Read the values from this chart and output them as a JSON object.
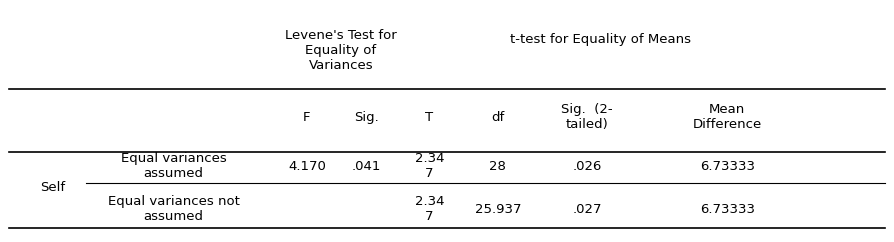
{
  "header_levene": "Levene's Test for\nEquality of\nVariances",
  "header_ttest": "t-test for Equality of Means",
  "col_F": "F",
  "col_Sig": "Sig.",
  "col_T": "T",
  "col_df": "df",
  "col_Sig2": "Sig.  (2-\ntailed)",
  "col_MD": "Mean\nDifference",
  "row_label_main": "Self",
  "row1_label": "Equal variances\nassumed",
  "row2_label": "Equal variances not\nassumed",
  "row1_F": "4.170",
  "row1_Sig": ".041",
  "row1_T": "2.34\n7",
  "row1_df": "28",
  "row1_Sig2": ".026",
  "row1_MD": "6.73333",
  "row2_F": "",
  "row2_Sig": "",
  "row2_T": "2.34\n7",
  "row2_df": "25.937",
  "row2_Sig2": ".027",
  "row2_MD": "6.73333",
  "bg_color": "#ffffff",
  "text_color": "#000000",
  "font_size": 9.5,
  "figsize": [
    8.94,
    2.42
  ],
  "dpi": 100
}
